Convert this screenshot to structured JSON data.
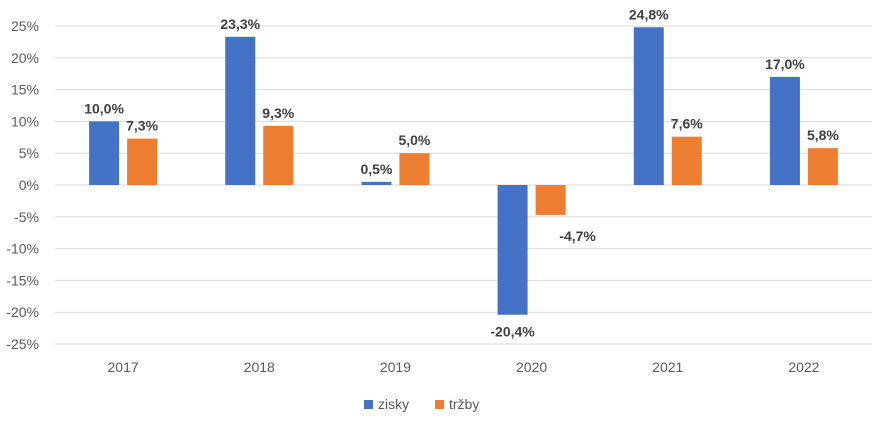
{
  "chart_data": {
    "type": "bar",
    "categories": [
      "2017",
      "2018",
      "2019",
      "2020",
      "2021",
      "2022"
    ],
    "series": [
      {
        "name": "zisky",
        "color": "#4472C4",
        "values": [
          10.0,
          23.3,
          0.5,
          -20.4,
          24.8,
          17.0
        ],
        "labels": [
          "10,0%",
          "23,3%",
          "0,5%",
          "-20,4%",
          "24,8%",
          "17,0%"
        ]
      },
      {
        "name": "tržby",
        "color": "#ED7D31",
        "values": [
          7.3,
          9.3,
          5.0,
          -4.7,
          7.6,
          5.8
        ],
        "labels": [
          "7,3%",
          "9,3%",
          "5,0%",
          "-4,7%",
          "7,6%",
          "5,8%"
        ]
      }
    ],
    "ylim": [
      -25,
      25
    ],
    "yticks": [
      25,
      20,
      15,
      10,
      5,
      0,
      -5,
      -10,
      -15,
      -20,
      -25
    ],
    "ytick_labels": [
      "25%",
      "20%",
      "15%",
      "10%",
      "5%",
      "0%",
      "-5%",
      "-10%",
      "-15%",
      "-20%",
      "-25%"
    ],
    "grid": true,
    "legend_position": "bottom",
    "gridline_color": "#D9D9D9",
    "axis_line_color": "#D9D9D9"
  }
}
